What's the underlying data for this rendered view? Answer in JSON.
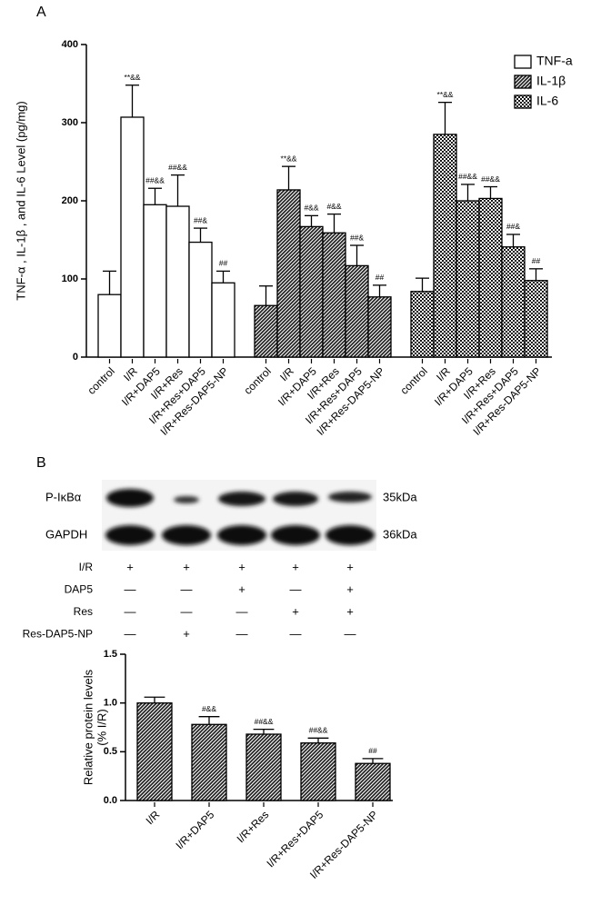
{
  "panel_labels": [
    "A",
    "B"
  ],
  "chart_data": [
    {
      "type": "bar",
      "y_label": "TNF-α , IL-1β , and IL-6 Level (pg/mg)",
      "categories": [
        "control",
        "I/R",
        "I/R+DAP5",
        "I/R+Res",
        "I/R+Res+DAP5",
        "I/R+Res-DAP5-NP"
      ],
      "series": [
        {
          "name": "TNF-a",
          "pattern": "none",
          "values": [
            80,
            307,
            195,
            193,
            147,
            95
          ],
          "errors": [
            30,
            41,
            21,
            40,
            18,
            15
          ],
          "annotations": [
            null,
            "**&&",
            "##&&",
            "##&&",
            "##&",
            "##"
          ]
        },
        {
          "name": "IL-1β",
          "pattern": "diagonal",
          "values": [
            66,
            214,
            167,
            159,
            117,
            77
          ],
          "errors": [
            25,
            30,
            14,
            24,
            26,
            15
          ],
          "annotations": [
            null,
            "**&&",
            "#&&",
            "#&&",
            "##&",
            "##"
          ]
        },
        {
          "name": "IL-6",
          "pattern": "checker",
          "values": [
            84,
            285,
            200,
            203,
            141,
            98
          ],
          "errors": [
            17,
            41,
            21,
            15,
            16,
            15
          ],
          "annotations": [
            null,
            "**&&",
            "##&&",
            "##&&",
            "##&",
            "##"
          ]
        }
      ],
      "ylim": [
        0,
        400
      ],
      "yticks": [
        0,
        100,
        200,
        300,
        400
      ],
      "legend": "top-right"
    },
    {
      "type": "bar",
      "y_label": [
        "Relative protein levels",
        "(% I/R)"
      ],
      "categories": [
        "I/R",
        "I/R+DAP5",
        "I/R+Res",
        "I/R+Res+DAP5",
        "I/R+Res-DAP5-NP"
      ],
      "pattern": "diagonal",
      "values": [
        1.0,
        0.78,
        0.68,
        0.59,
        0.38
      ],
      "errors": [
        0.06,
        0.08,
        0.05,
        0.05,
        0.05
      ],
      "annotations": [
        null,
        "#&&",
        "##&&",
        "##&&",
        "##"
      ],
      "ylim": [
        0,
        1.5
      ],
      "yticks": [
        {
          "value": 0,
          "label": "0.0"
        },
        {
          "value": 0.5,
          "label": "0.5"
        },
        {
          "value": 1,
          "label": "1.0"
        },
        {
          "value": 1.5,
          "label": "1.5"
        }
      ]
    }
  ],
  "blot": {
    "bands": [
      {
        "name": "P-IκBα",
        "size": "35kDa"
      },
      {
        "name": "GAPDH",
        "size": "36kDa"
      }
    ],
    "rows": [
      {
        "label": "I/R",
        "signs": [
          "+",
          "+",
          "+",
          "+",
          "+"
        ]
      },
      {
        "label": "DAP5",
        "signs": [
          "—",
          "—",
          "+",
          "—",
          "+"
        ]
      },
      {
        "label": "Res",
        "signs": [
          "—",
          "—",
          "—",
          "+",
          "+"
        ]
      },
      {
        "label": "Res-DAP5-NP",
        "signs": [
          "—",
          "+",
          "—",
          "—",
          "—"
        ]
      }
    ]
  }
}
